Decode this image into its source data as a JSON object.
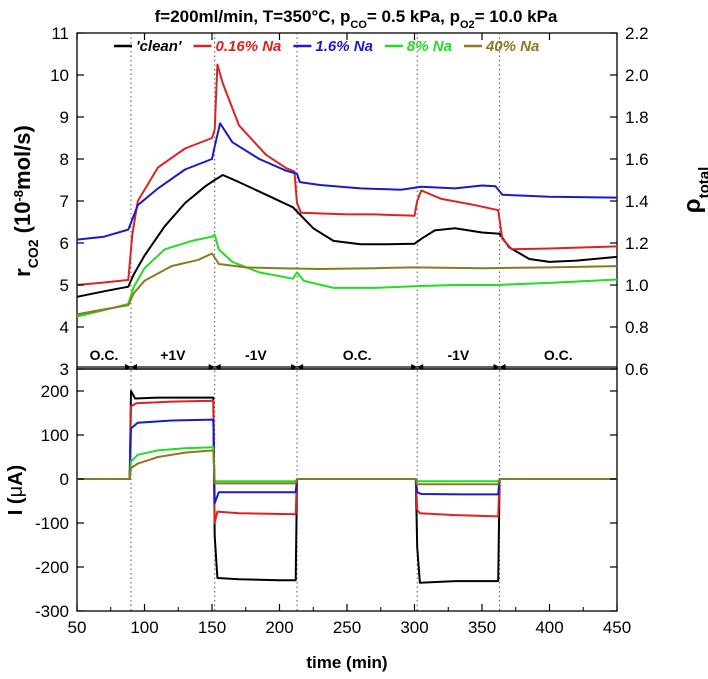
{
  "chart_data": {
    "type": "line",
    "title": {
      "prefix": "f=200ml/min, T=350°C, p",
      "sub1": "CO",
      "mid": "= 0.5 kPa, p",
      "sub2": "O2",
      "suffix": "= 10.0 kPa"
    },
    "x": {
      "label": "time (min)",
      "min": 50,
      "max": 450,
      "ticks": [
        "50",
        "100",
        "150",
        "200",
        "250",
        "300",
        "350",
        "400",
        "450"
      ]
    },
    "top_panel": {
      "y_left": {
        "label_main": "r",
        "label_sub": "CO2",
        "label_units_pre": " (10",
        "label_units_sup": "-8",
        "label_units_post": "mol/s)",
        "min": 3,
        "max": 11,
        "ticks": [
          "3",
          "4",
          "5",
          "6",
          "7",
          "8",
          "9",
          "10",
          "11"
        ]
      },
      "y_right": {
        "label_main": "ρ",
        "label_sub": "total",
        "min": 0.6,
        "max": 2.2,
        "ticks": [
          "0.6",
          "0.8",
          "1.0",
          "1.2",
          "1.4",
          "1.6",
          "1.8",
          "2.0",
          "2.2"
        ]
      },
      "phase_boundaries": [
        90,
        152,
        213,
        302,
        363
      ],
      "phases": [
        {
          "label": "O.C.",
          "start": 50,
          "end": 90
        },
        {
          "label": "+1V",
          "start": 90,
          "end": 152
        },
        {
          "label": "-1V",
          "start": 152,
          "end": 213
        },
        {
          "label": "O.C.",
          "start": 213,
          "end": 302
        },
        {
          "label": "-1V",
          "start": 302,
          "end": 363
        },
        {
          "label": "O.C.",
          "start": 363,
          "end": 450
        }
      ],
      "series": [
        {
          "name": "'clean'",
          "color": "#000000",
          "points": [
            [
              50,
              4.72
            ],
            [
              70,
              4.85
            ],
            [
              88,
              4.96
            ],
            [
              92,
              5.25
            ],
            [
              100,
              5.7
            ],
            [
              115,
              6.4
            ],
            [
              130,
              6.95
            ],
            [
              145,
              7.35
            ],
            [
              152,
              7.5
            ],
            [
              158,
              7.62
            ],
            [
              170,
              7.45
            ],
            [
              190,
              7.15
            ],
            [
              210,
              6.85
            ],
            [
              213,
              6.75
            ],
            [
              225,
              6.35
            ],
            [
              240,
              6.05
            ],
            [
              260,
              5.97
            ],
            [
              280,
              5.97
            ],
            [
              300,
              5.98
            ],
            [
              305,
              6.1
            ],
            [
              315,
              6.3
            ],
            [
              330,
              6.35
            ],
            [
              350,
              6.25
            ],
            [
              363,
              6.22
            ],
            [
              370,
              5.9
            ],
            [
              385,
              5.62
            ],
            [
              400,
              5.55
            ],
            [
              420,
              5.58
            ],
            [
              450,
              5.67
            ]
          ]
        },
        {
          "name": "0.16% Na",
          "color": "#dd2222",
          "points": [
            [
              50,
              5.0
            ],
            [
              70,
              5.06
            ],
            [
              88,
              5.12
            ],
            [
              91,
              6.2
            ],
            [
              95,
              7.0
            ],
            [
              110,
              7.8
            ],
            [
              130,
              8.25
            ],
            [
              150,
              8.5
            ],
            [
              152,
              8.7
            ],
            [
              154,
              10.25
            ],
            [
              158,
              9.8
            ],
            [
              170,
              8.8
            ],
            [
              190,
              8.1
            ],
            [
              205,
              7.78
            ],
            [
              211,
              7.7
            ],
            [
              213,
              6.95
            ],
            [
              216,
              6.72
            ],
            [
              250,
              6.68
            ],
            [
              270,
              6.68
            ],
            [
              300,
              6.65
            ],
            [
              302,
              7.0
            ],
            [
              305,
              7.25
            ],
            [
              320,
              7.05
            ],
            [
              345,
              6.9
            ],
            [
              362,
              6.78
            ],
            [
              365,
              6.1
            ],
            [
              372,
              5.85
            ],
            [
              400,
              5.87
            ],
            [
              430,
              5.9
            ],
            [
              450,
              5.92
            ]
          ]
        },
        {
          "name": "1.6% Na",
          "color": "#1a1acc",
          "points": [
            [
              50,
              6.08
            ],
            [
              70,
              6.15
            ],
            [
              88,
              6.32
            ],
            [
              95,
              6.9
            ],
            [
              110,
              7.3
            ],
            [
              130,
              7.75
            ],
            [
              150,
              8.0
            ],
            [
              152,
              8.3
            ],
            [
              156,
              8.85
            ],
            [
              165,
              8.4
            ],
            [
              185,
              8.0
            ],
            [
              205,
              7.72
            ],
            [
              213,
              7.65
            ],
            [
              215,
              7.45
            ],
            [
              230,
              7.38
            ],
            [
              260,
              7.3
            ],
            [
              290,
              7.27
            ],
            [
              305,
              7.34
            ],
            [
              330,
              7.3
            ],
            [
              350,
              7.37
            ],
            [
              360,
              7.35
            ],
            [
              365,
              7.15
            ],
            [
              400,
              7.1
            ],
            [
              450,
              7.08
            ]
          ]
        },
        {
          "name": "8% Na",
          "color": "#22dd22",
          "points": [
            [
              50,
              4.25
            ],
            [
              70,
              4.4
            ],
            [
              88,
              4.55
            ],
            [
              92,
              4.95
            ],
            [
              100,
              5.4
            ],
            [
              115,
              5.85
            ],
            [
              135,
              6.05
            ],
            [
              150,
              6.15
            ],
            [
              152,
              6.2
            ],
            [
              155,
              5.85
            ],
            [
              165,
              5.55
            ],
            [
              185,
              5.3
            ],
            [
              210,
              5.15
            ],
            [
              213,
              5.3
            ],
            [
              218,
              5.1
            ],
            [
              240,
              4.93
            ],
            [
              270,
              4.93
            ],
            [
              300,
              4.97
            ],
            [
              330,
              5.0
            ],
            [
              360,
              5.0
            ],
            [
              400,
              5.05
            ],
            [
              450,
              5.13
            ]
          ]
        },
        {
          "name": "40% Na",
          "color": "#8b7a22",
          "points": [
            [
              50,
              4.3
            ],
            [
              70,
              4.42
            ],
            [
              88,
              4.52
            ],
            [
              92,
              4.8
            ],
            [
              100,
              5.1
            ],
            [
              120,
              5.45
            ],
            [
              140,
              5.6
            ],
            [
              150,
              5.75
            ],
            [
              155,
              5.5
            ],
            [
              175,
              5.42
            ],
            [
              200,
              5.4
            ],
            [
              230,
              5.38
            ],
            [
              270,
              5.4
            ],
            [
              300,
              5.42
            ],
            [
              350,
              5.4
            ],
            [
              400,
              5.42
            ],
            [
              450,
              5.45
            ]
          ]
        }
      ]
    },
    "bottom_panel": {
      "y": {
        "label_main": "I (",
        "label_mu": "μ",
        "label_post": "A)",
        "min": -300,
        "max": 250,
        "ticks": [
          "-300",
          "-200",
          "-100",
          "0",
          "100",
          "200"
        ]
      },
      "series": [
        {
          "name": "'clean'",
          "color": "#000000",
          "points": [
            [
              50,
              0
            ],
            [
              89,
              0
            ],
            [
              90,
              200
            ],
            [
              93,
              183
            ],
            [
              110,
              185
            ],
            [
              151,
              185
            ],
            [
              152,
              -130
            ],
            [
              154,
              -225
            ],
            [
              170,
              -228
            ],
            [
              200,
              -230
            ],
            [
              212,
              -230
            ],
            [
              213,
              0
            ],
            [
              301,
              0
            ],
            [
              302,
              -155
            ],
            [
              304,
              -236
            ],
            [
              330,
              -232
            ],
            [
              362,
              -232
            ],
            [
              363,
              0
            ],
            [
              450,
              0
            ]
          ]
        },
        {
          "name": "0.16% Na",
          "color": "#dd2222",
          "points": [
            [
              50,
              0
            ],
            [
              89,
              0
            ],
            [
              90,
              165
            ],
            [
              94,
              172
            ],
            [
              120,
              176
            ],
            [
              151,
              178
            ],
            [
              152,
              -100
            ],
            [
              154,
              -74
            ],
            [
              170,
              -78
            ],
            [
              212,
              -80
            ],
            [
              213,
              0
            ],
            [
              301,
              0
            ],
            [
              302,
              -70
            ],
            [
              304,
              -78
            ],
            [
              330,
              -82
            ],
            [
              362,
              -85
            ],
            [
              363,
              0
            ],
            [
              450,
              0
            ]
          ]
        },
        {
          "name": "1.6% Na",
          "color": "#1a1acc",
          "points": [
            [
              50,
              0
            ],
            [
              89,
              0
            ],
            [
              90,
              115
            ],
            [
              95,
              128
            ],
            [
              120,
              133
            ],
            [
              151,
              135
            ],
            [
              152,
              -55
            ],
            [
              155,
              -30
            ],
            [
              180,
              -30
            ],
            [
              212,
              -30
            ],
            [
              213,
              0
            ],
            [
              301,
              0
            ],
            [
              302,
              -30
            ],
            [
              305,
              -34
            ],
            [
              335,
              -35
            ],
            [
              362,
              -35
            ],
            [
              363,
              0
            ],
            [
              450,
              0
            ]
          ]
        },
        {
          "name": "8% Na",
          "color": "#22dd22",
          "points": [
            [
              50,
              0
            ],
            [
              89,
              0
            ],
            [
              90,
              40
            ],
            [
              95,
              55
            ],
            [
              110,
              65
            ],
            [
              130,
              70
            ],
            [
              151,
              72
            ],
            [
              152,
              -5
            ],
            [
              212,
              -5
            ],
            [
              213,
              0
            ],
            [
              301,
              0
            ],
            [
              302,
              -5
            ],
            [
              362,
              -5
            ],
            [
              363,
              0
            ],
            [
              450,
              0
            ]
          ]
        },
        {
          "name": "40% Na",
          "color": "#8b7a22",
          "points": [
            [
              50,
              0
            ],
            [
              89,
              0
            ],
            [
              90,
              25
            ],
            [
              95,
              35
            ],
            [
              110,
              50
            ],
            [
              130,
              60
            ],
            [
              151,
              65
            ],
            [
              152,
              -10
            ],
            [
              212,
              -10
            ],
            [
              213,
              0
            ],
            [
              301,
              0
            ],
            [
              302,
              -12
            ],
            [
              362,
              -12
            ],
            [
              363,
              0
            ],
            [
              450,
              0
            ]
          ]
        }
      ]
    },
    "legend": [
      {
        "label": "'clean'",
        "color": "#000000"
      },
      {
        "label": "0.16% Na",
        "color": "#dd2222"
      },
      {
        "label": "1.6% Na",
        "color": "#1a1acc"
      },
      {
        "label": "8% Na",
        "color": "#22dd22"
      },
      {
        "label": "40% Na",
        "color": "#8b7a22"
      }
    ]
  }
}
